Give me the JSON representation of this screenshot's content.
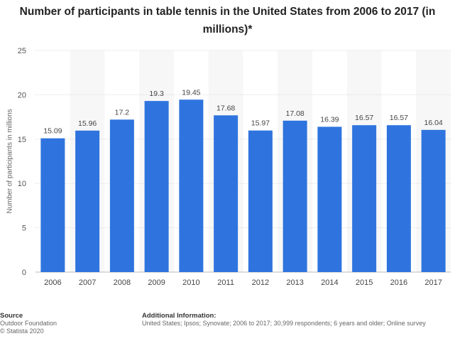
{
  "title": "Number of participants in table tennis in the United States from 2006 to 2017 (in millions)*",
  "footer": {
    "source_heading": "Source",
    "source_line1": "Outdoor Foundation",
    "source_line2": "© Statista 2020",
    "info_heading": "Additional Information:",
    "info_text": "United States; Ipsos; Synovate; 2006 to 2017; 30,999 respondents; 6 years and older; Online survey"
  },
  "chart_data": {
    "type": "bar",
    "title": "Number of participants in table tennis in the United States from 2006 to 2017 (in millions)*",
    "xlabel": "",
    "ylabel": "Number of participants in millions",
    "categories": [
      "2006",
      "2007",
      "2008",
      "2009",
      "2010",
      "2011",
      "2012",
      "2013",
      "2014",
      "2015",
      "2016",
      "2017"
    ],
    "values": [
      15.09,
      15.96,
      17.2,
      19.3,
      19.45,
      17.68,
      15.97,
      17.08,
      16.39,
      16.57,
      16.57,
      16.04
    ],
    "value_labels": [
      "15.09",
      "15.96",
      "17.2",
      "19.3",
      "19.45",
      "17.68",
      "15.97",
      "17.08",
      "16.39",
      "16.57",
      "16.57",
      "16.04"
    ],
    "ylim": [
      0,
      25
    ],
    "yticks": [
      "0",
      "5",
      "10",
      "15",
      "20",
      "25"
    ],
    "grid": true,
    "bar_color": "#2f74de"
  }
}
